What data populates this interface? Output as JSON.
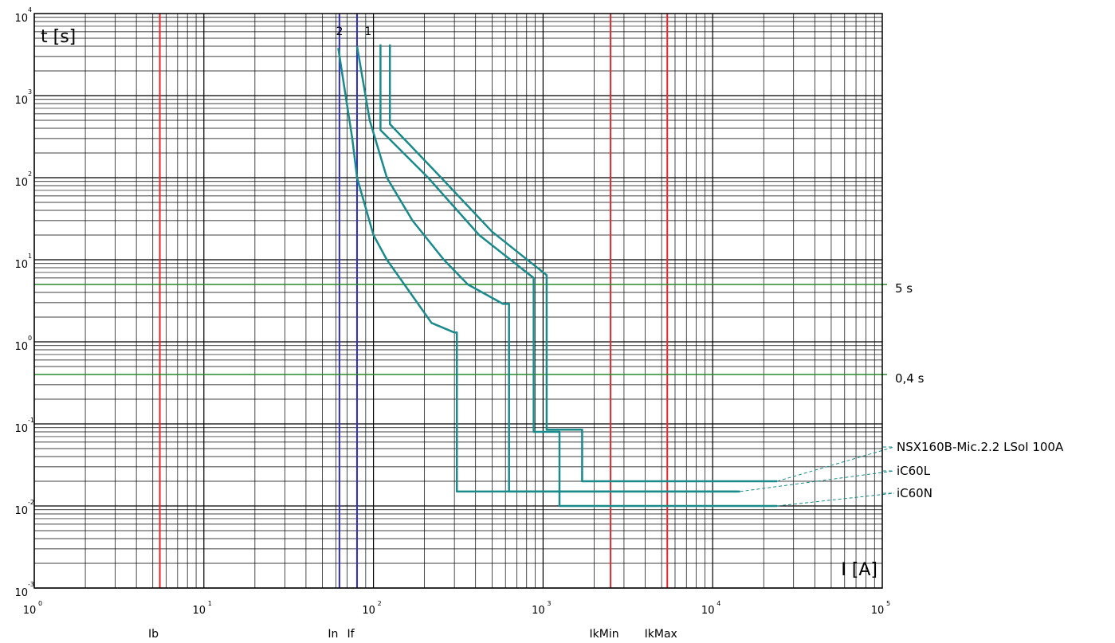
{
  "chart_data": {
    "type": "line",
    "xscale": "log",
    "yscale": "log",
    "xlim": [
      1,
      100000
    ],
    "ylim": [
      0.001,
      10000
    ],
    "xlabel": "I [A]",
    "ylabel": "t [s]",
    "grid": true,
    "x_ticks": [
      {
        "base": "10",
        "exp": "0"
      },
      {
        "base": "10",
        "exp": "1"
      },
      {
        "base": "10",
        "exp": "2"
      },
      {
        "base": "10",
        "exp": "3"
      },
      {
        "base": "10",
        "exp": "4"
      },
      {
        "base": "10",
        "exp": "5"
      }
    ],
    "y_ticks": [
      {
        "base": "10",
        "exp": "-3"
      },
      {
        "base": "10",
        "exp": "-2"
      },
      {
        "base": "10",
        "exp": "-1"
      },
      {
        "base": "10",
        "exp": "0"
      },
      {
        "base": "10",
        "exp": "1"
      },
      {
        "base": "10",
        "exp": "2"
      },
      {
        "base": "10",
        "exp": "3"
      },
      {
        "base": "10",
        "exp": "4"
      }
    ],
    "current_markers": [
      {
        "label": "Ib",
        "value": 5.5,
        "color": "#e8262b"
      },
      {
        "label": "In",
        "value": 63,
        "color": "#2b2bd9"
      },
      {
        "label": "If",
        "value": 80,
        "color": "#2b2bd9"
      },
      {
        "label": "IkMin",
        "value": 2500,
        "color": "#e8262b"
      },
      {
        "label": "IkMax",
        "value": 5400,
        "color": "#e8262b"
      }
    ],
    "time_markers": [
      {
        "label": "5 s",
        "value": 5,
        "color": "#2a8a2a"
      },
      {
        "label": "0,4 s",
        "value": 0.4,
        "color": "#2a8a2a"
      }
    ],
    "curve_numbers": [
      {
        "text": "2",
        "x": 63,
        "y": 5000
      },
      {
        "text": "1",
        "x": 93,
        "y": 5000
      }
    ],
    "series_color": "#1a8a8a",
    "series": [
      {
        "name": "NSX160B-Mic.2.2 LSoI 100A",
        "points": [
          [
            110,
            4200
          ],
          [
            110,
            380
          ],
          [
            210,
            100
          ],
          [
            420,
            20
          ],
          [
            880,
            6
          ],
          [
            880,
            0.08
          ],
          [
            1250,
            0.08
          ],
          [
            1250,
            0.01
          ],
          [
            24000,
            0.01
          ]
        ],
        "points_b": [
          [
            125,
            4200
          ],
          [
            125,
            450
          ],
          [
            240,
            110
          ],
          [
            500,
            22
          ],
          [
            1050,
            6.5
          ],
          [
            1050,
            0.085
          ],
          [
            1700,
            0.085
          ],
          [
            1700,
            0.02
          ],
          [
            24000,
            0.02
          ]
        ]
      },
      {
        "name": "iC60L",
        "points": [
          [
            80,
            4000
          ],
          [
            95,
            500
          ],
          [
            120,
            100
          ],
          [
            170,
            30
          ],
          [
            260,
            10
          ],
          [
            360,
            5
          ],
          [
            580,
            2.9
          ],
          [
            630,
            2.9
          ],
          [
            630,
            0.015
          ],
          [
            14500,
            0.015
          ]
        ]
      },
      {
        "name": "iC60N",
        "points": [
          [
            62,
            3800
          ],
          [
            75,
            300
          ],
          [
            80,
            100
          ],
          [
            100,
            20
          ],
          [
            120,
            10
          ],
          [
            220,
            1.7
          ],
          [
            300,
            1.3
          ],
          [
            310,
            1.3
          ],
          [
            310,
            0.015
          ],
          [
            14000,
            0.015
          ]
        ]
      }
    ],
    "legend": [
      {
        "label": "NSX160B-Mic.2.2 LSoI 100A",
        "anchor": [
          24000,
          0.02
        ]
      },
      {
        "label": "iC60L",
        "anchor": [
          14500,
          0.015
        ]
      },
      {
        "label": "iC60N",
        "anchor": [
          24000,
          0.01
        ]
      }
    ]
  }
}
